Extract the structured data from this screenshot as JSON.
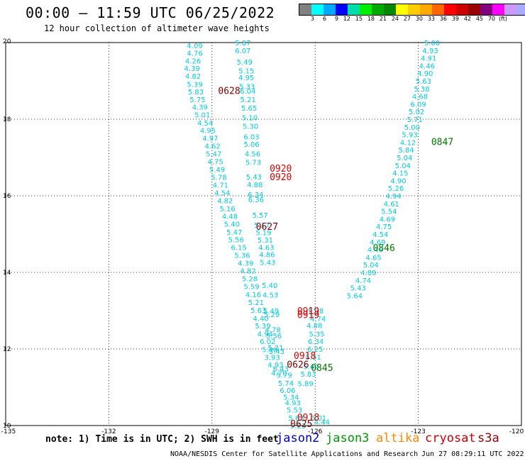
{
  "header": {
    "title": "00:00 – 11:59 UTC 06/25/2022",
    "subtitle": "12 hour collection of altimeter wave heights"
  },
  "colorbar": {
    "colors": [
      "#808080",
      "#00ffff",
      "#00aaff",
      "#0000ff",
      "#00ddaa",
      "#00ee00",
      "#00aa00",
      "#008800",
      "#ffff00",
      "#ffcc00",
      "#ffaa00",
      "#ff6600",
      "#ff0000",
      "#cc0000",
      "#990000",
      "#800080",
      "#ff00ff",
      "#cc99ff",
      "#aaaaff",
      "#000000"
    ],
    "tick_labels": [
      "3",
      "6",
      "9",
      "12",
      "15",
      "18",
      "21",
      "24",
      "27",
      "30",
      "33",
      "36",
      "39",
      "42",
      "45",
      "70",
      "(ft)"
    ]
  },
  "axes": {
    "x_ticks": [
      "-135",
      "-132",
      "-129",
      "-126",
      "-123",
      "-120"
    ],
    "y_ticks": [
      "20",
      "18",
      "16",
      "14",
      "12",
      "10"
    ]
  },
  "chart_data": {
    "type": "scatter",
    "x_range": [
      -135,
      -120
    ],
    "y_range": [
      10,
      20
    ],
    "grid": true,
    "tracks": [
      {
        "name": "track-a",
        "color": "#00ccdd",
        "points": [
          [
            -129.5,
            19.93,
            "4.09"
          ],
          [
            -129.5,
            19.73,
            "4.76"
          ],
          [
            -129.55,
            19.53,
            "4.26"
          ],
          [
            -129.58,
            19.33,
            "4.39"
          ],
          [
            -129.55,
            19.13,
            "4.82"
          ],
          [
            -129.5,
            18.92,
            "5.39"
          ],
          [
            -129.47,
            18.72,
            "5.83"
          ],
          [
            -129.42,
            18.52,
            "5.75"
          ],
          [
            -129.35,
            18.32,
            "4.39"
          ],
          [
            -129.28,
            18.12,
            "5.01"
          ],
          [
            -129.2,
            17.91,
            "4.54"
          ],
          [
            -129.12,
            17.71,
            "4.95"
          ],
          [
            -129.05,
            17.51,
            "4.97"
          ],
          [
            -128.98,
            17.31,
            "4.62"
          ],
          [
            -128.95,
            17.1,
            "5.47"
          ],
          [
            -128.9,
            16.9,
            "4.75"
          ],
          [
            -128.85,
            16.69,
            "5.49"
          ],
          [
            -128.8,
            16.49,
            "5.78"
          ],
          [
            -128.75,
            16.29,
            "4.71"
          ],
          [
            -128.7,
            16.08,
            "4.54"
          ],
          [
            -128.62,
            15.88,
            "4.82"
          ],
          [
            -128.55,
            15.67,
            "5.16"
          ],
          [
            -128.48,
            15.47,
            "4.48"
          ],
          [
            -128.42,
            15.27,
            "5.40"
          ],
          [
            -128.35,
            15.06,
            "5.47"
          ],
          [
            -128.3,
            14.86,
            "5.56"
          ],
          [
            -128.22,
            14.66,
            "6.15"
          ],
          [
            -128.12,
            14.45,
            "5.36"
          ],
          [
            -128.02,
            14.25,
            "4.39"
          ],
          [
            -127.95,
            14.05,
            "4.82"
          ],
          [
            -127.9,
            13.84,
            "5.28"
          ],
          [
            -127.85,
            13.64,
            "5.59"
          ],
          [
            -127.8,
            13.43,
            "4.16"
          ],
          [
            -127.72,
            13.22,
            "5.21"
          ],
          [
            -127.65,
            13.02,
            "5.63"
          ],
          [
            -127.58,
            12.81,
            "4.40"
          ],
          [
            -127.52,
            12.61,
            "5.39"
          ],
          [
            -127.45,
            12.4,
            "4.94"
          ],
          [
            -127.38,
            12.2,
            "6.02"
          ],
          [
            -127.32,
            11.99,
            "5.30"
          ],
          [
            -127.25,
            11.79,
            "3.93"
          ],
          [
            -127.15,
            11.59,
            "4.93"
          ],
          [
            -127.05,
            11.38,
            "4.70"
          ]
        ]
      },
      {
        "name": "track-b",
        "color": "#00ccdd",
        "points": [
          [
            -128.1,
            20.0,
            "5.87"
          ],
          [
            -128.1,
            19.8,
            "6.07"
          ],
          [
            -128.05,
            19.5,
            "5.49"
          ],
          [
            -128.0,
            19.27,
            "5.15"
          ],
          [
            -128.0,
            19.09,
            "4.95"
          ],
          [
            -127.98,
            18.86,
            "5.33"
          ],
          [
            -127.96,
            18.74,
            "6.04"
          ],
          [
            -127.95,
            18.52,
            "5.21"
          ],
          [
            -127.92,
            18.3,
            "5.65"
          ],
          [
            -127.9,
            18.05,
            "5.10"
          ],
          [
            -127.88,
            17.82,
            "5.30"
          ],
          [
            -127.85,
            17.55,
            "6.03"
          ],
          [
            -127.85,
            17.35,
            "5.06"
          ],
          [
            -127.82,
            17.1,
            "4.56"
          ],
          [
            -127.8,
            16.88,
            "5.73"
          ],
          [
            -127.78,
            16.5,
            "5.43"
          ],
          [
            -127.75,
            16.3,
            "4.88"
          ],
          [
            -127.73,
            16.04,
            "6.34"
          ],
          [
            -127.72,
            15.91,
            "6.36"
          ],
          [
            -127.6,
            15.5,
            "5.57"
          ],
          [
            -127.55,
            15.24,
            "5.17"
          ],
          [
            -127.5,
            15.05,
            "5.19"
          ],
          [
            -127.45,
            14.85,
            "5.31"
          ],
          [
            -127.42,
            14.66,
            "4.63"
          ],
          [
            -127.4,
            14.47,
            "4.86"
          ],
          [
            -127.38,
            14.27,
            "5.43"
          ],
          [
            -127.32,
            13.67,
            "5.40"
          ],
          [
            -127.3,
            13.42,
            "4.53"
          ],
          [
            -127.28,
            13.0,
            "5.49"
          ],
          [
            -127.26,
            12.91,
            "5.29"
          ],
          [
            -127.23,
            12.51,
            "4.78"
          ],
          [
            -127.2,
            12.35,
            "5.56"
          ],
          [
            -127.15,
            12.04,
            "5.21"
          ],
          [
            -127.12,
            11.94,
            "5.43"
          ],
          [
            -127.0,
            11.49,
            "6.43"
          ],
          [
            -126.9,
            11.32,
            "5.79"
          ],
          [
            -126.85,
            11.11,
            "5.74"
          ],
          [
            -126.8,
            10.93,
            "6.06"
          ],
          [
            -126.7,
            10.75,
            "5.34"
          ],
          [
            -126.65,
            10.6,
            "4.93"
          ],
          [
            -126.6,
            10.42,
            "5.53"
          ],
          [
            -126.55,
            10.2,
            "5.63"
          ],
          [
            -126.5,
            10.0,
            "5.23"
          ]
        ]
      },
      {
        "name": "track-c",
        "color": "#00ccdd",
        "points": [
          [
            -125.98,
            13.0,
            "5.78"
          ],
          [
            -125.92,
            12.8,
            "4.74"
          ],
          [
            -126.02,
            12.62,
            "4.88"
          ],
          [
            -125.95,
            12.4,
            "5.35"
          ],
          [
            -125.98,
            12.2,
            "6.34"
          ],
          [
            -126.0,
            12.0,
            "6.25"
          ],
          [
            -126.05,
            11.8,
            "5.51"
          ],
          [
            -126.12,
            11.55,
            "5.42"
          ],
          [
            -126.2,
            11.35,
            "5.83"
          ],
          [
            -126.28,
            11.1,
            "5.89"
          ]
        ]
      },
      {
        "name": "track-d",
        "color": "#00ccdd",
        "points": [
          [
            -122.6,
            20.0,
            "5.00"
          ],
          [
            -122.65,
            19.8,
            "4.93"
          ],
          [
            -122.7,
            19.6,
            "4.91"
          ],
          [
            -122.75,
            19.4,
            "4.46"
          ],
          [
            -122.8,
            19.2,
            "4.90"
          ],
          [
            -122.85,
            19.0,
            "5.63"
          ],
          [
            -122.9,
            18.8,
            "5.38"
          ],
          [
            -122.95,
            18.6,
            "4.68"
          ],
          [
            -123.0,
            18.4,
            "6.09"
          ],
          [
            -123.05,
            18.2,
            "5.02"
          ],
          [
            -123.1,
            18.0,
            "5.71"
          ],
          [
            -123.18,
            17.8,
            "5.00"
          ],
          [
            -123.25,
            17.6,
            "5.93"
          ],
          [
            -123.3,
            17.4,
            "4.12"
          ],
          [
            -123.35,
            17.2,
            "5.84"
          ],
          [
            -123.4,
            17.0,
            "5.04"
          ],
          [
            -123.45,
            16.8,
            "5.04"
          ],
          [
            -123.52,
            16.6,
            "4.15"
          ],
          [
            -123.58,
            16.4,
            "4.90"
          ],
          [
            -123.65,
            16.2,
            "5.26"
          ],
          [
            -123.72,
            16.0,
            "4.94"
          ],
          [
            -123.78,
            15.8,
            "4.61"
          ],
          [
            -123.85,
            15.6,
            "5.54"
          ],
          [
            -123.9,
            15.4,
            "4.69"
          ],
          [
            -124.0,
            15.2,
            "4.75"
          ],
          [
            -124.1,
            15.0,
            "4.54"
          ],
          [
            -124.18,
            14.8,
            "4.69"
          ],
          [
            -124.25,
            14.6,
            "4.46"
          ],
          [
            -124.3,
            14.4,
            "4.65"
          ],
          [
            -124.38,
            14.2,
            "5.04"
          ],
          [
            -124.45,
            14.0,
            "4.89"
          ],
          [
            -124.6,
            13.8,
            "4.74"
          ],
          [
            -124.75,
            13.6,
            "5.43"
          ],
          [
            -124.85,
            13.4,
            "5.64"
          ]
        ]
      },
      {
        "name": "track-e",
        "color": "#00ccdd",
        "points": [
          [
            -125.9,
            10.2,
            "6.01"
          ],
          [
            -125.8,
            10.1,
            "4.44"
          ]
        ]
      }
    ],
    "time_labels": [
      {
        "x": -128.5,
        "y": 18.75,
        "text": "0628",
        "color": "#800000"
      },
      {
        "x": -127.0,
        "y": 16.72,
        "text": "0920",
        "color": "#dd0000"
      },
      {
        "x": -127.0,
        "y": 16.5,
        "text": "0920",
        "color": "#dd0000"
      },
      {
        "x": -127.4,
        "y": 15.2,
        "text": "0627",
        "color": "#800000"
      },
      {
        "x": -126.2,
        "y": 13.0,
        "text": "0919",
        "color": "#dd0000"
      },
      {
        "x": -126.2,
        "y": 12.9,
        "text": "0919",
        "color": "#dd0000"
      },
      {
        "x": -126.3,
        "y": 11.83,
        "text": "0918",
        "color": "#dd0000"
      },
      {
        "x": -126.5,
        "y": 11.6,
        "text": "0626",
        "color": "#800000"
      },
      {
        "x": -126.2,
        "y": 10.22,
        "text": "0918",
        "color": "#dd0000"
      },
      {
        "x": -126.4,
        "y": 10.06,
        "text": "0625",
        "color": "#800000"
      },
      {
        "x": -122.3,
        "y": 17.42,
        "text": "0847",
        "color": "#007700"
      },
      {
        "x": -124.0,
        "y": 14.65,
        "text": "0846",
        "color": "#007700"
      },
      {
        "x": -125.8,
        "y": 11.52,
        "text": "0845",
        "color": "#007700"
      }
    ]
  },
  "note": {
    "text": "note: 1) Time is in UTC; 2) SWH is in feet",
    "legend": [
      {
        "label": "jason2",
        "color": "#0000cc"
      },
      {
        "label": "jason3",
        "color": "#009900"
      },
      {
        "label": "altika",
        "color": "#ff8800"
      },
      {
        "label": "cryosat",
        "color": "#cc0000"
      },
      {
        "label": "s3a",
        "color": "#990000"
      }
    ]
  },
  "footer": {
    "credit": "NOAA/NESDIS Center for Satellite Applications and Research",
    "timestamp": "Jun 27 08:29:11 UTC 2022"
  }
}
